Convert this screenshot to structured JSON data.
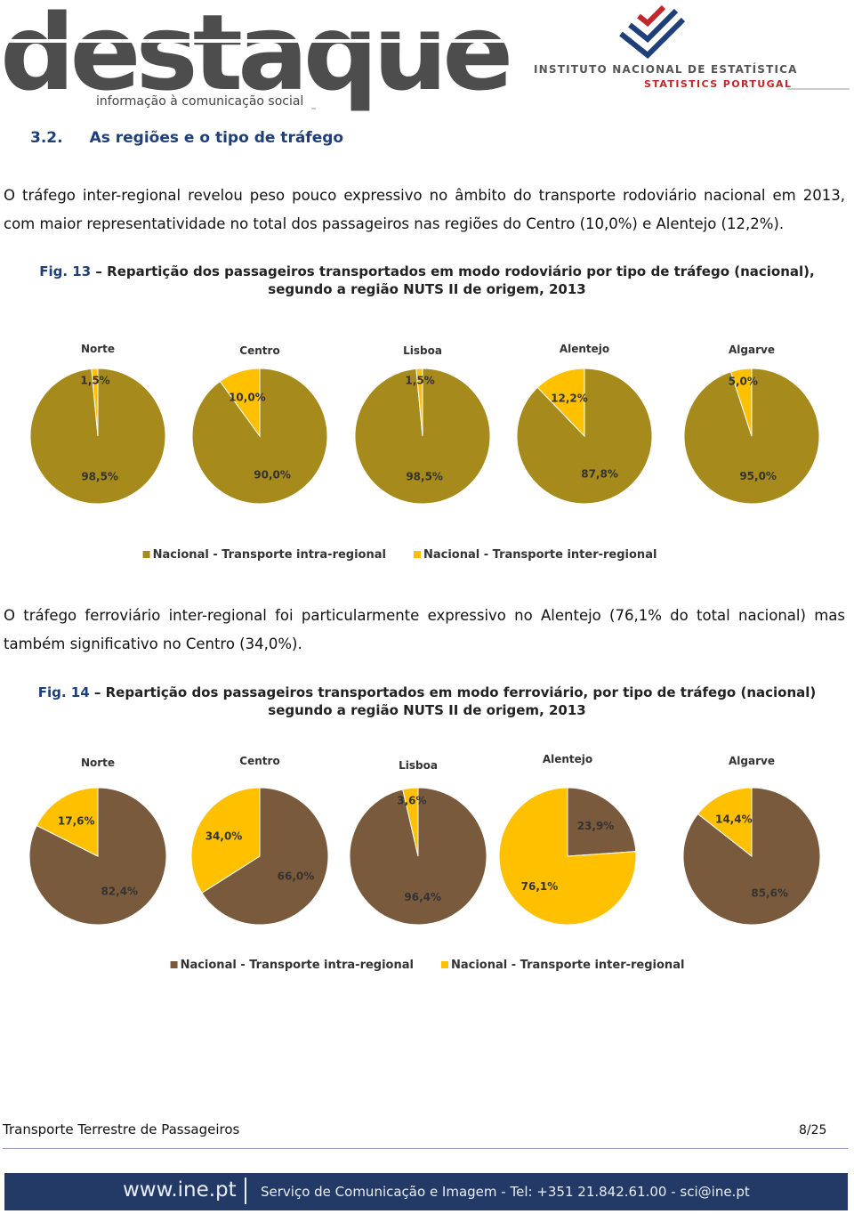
{
  "header": {
    "brand": "destaque",
    "tagline": "informação à comunicação social",
    "institute": "INSTITUTO NACIONAL DE ESTATÍSTICA",
    "institute_en": "STATISTICS PORTUGAL"
  },
  "section": {
    "number": "3.2.",
    "title": "As regiões e o tipo de tráfego"
  },
  "paragraphs": [
    "O tráfego inter-regional revelou peso pouco expressivo no âmbito do transporte rodoviário nacional em 2013, com maior representatividade no total dos passageiros nas regiões do Centro (10,0%) e Alentejo (12,2%).",
    "O tráfego ferroviário inter-regional foi particularmente expressivo no Alentejo (76,1% do total nacional) mas também significativo no Centro (34,0%)."
  ],
  "figures": [
    {
      "label": "Fig. 13",
      "caption": "– Repartição dos passageiros transportados em modo rodoviário por tipo de tráfego (nacional), segundo a região NUTS II de origem, 2013",
      "chart_data": [
        {
          "type": "pie",
          "title": "Norte",
          "categories": [
            "Nacional - Transporte intra-regional",
            "Nacional - Transporte inter-regional"
          ],
          "colors": [
            "#a68a1c",
            "#ffc000"
          ],
          "values": [
            98.5,
            1.5
          ],
          "value_labels": [
            "98,5%",
            "1,5%"
          ]
        },
        {
          "type": "pie",
          "title": "Centro",
          "categories": [
            "Nacional - Transporte intra-regional",
            "Nacional - Transporte inter-regional"
          ],
          "colors": [
            "#a68a1c",
            "#ffc000"
          ],
          "values": [
            90.0,
            10.0
          ],
          "value_labels": [
            "90,0%",
            "10,0%"
          ]
        },
        {
          "type": "pie",
          "title": "Lisboa",
          "categories": [
            "Nacional - Transporte intra-regional",
            "Nacional - Transporte inter-regional"
          ],
          "colors": [
            "#a68a1c",
            "#ffc000"
          ],
          "values": [
            98.5,
            1.5
          ],
          "value_labels": [
            "98,5%",
            "1,5%"
          ]
        },
        {
          "type": "pie",
          "title": "Alentejo",
          "categories": [
            "Nacional - Transporte intra-regional",
            "Nacional - Transporte inter-regional"
          ],
          "colors": [
            "#a68a1c",
            "#ffc000"
          ],
          "values": [
            87.8,
            12.2
          ],
          "value_labels": [
            "87,8%",
            "12,2%"
          ]
        },
        {
          "type": "pie",
          "title": "Algarve",
          "categories": [
            "Nacional - Transporte intra-regional",
            "Nacional - Transporte inter-regional"
          ],
          "colors": [
            "#a68a1c",
            "#ffc000"
          ],
          "values": [
            95.0,
            5.0
          ],
          "value_labels": [
            "95,0%",
            "5,0%"
          ]
        }
      ]
    },
    {
      "label": "Fig. 14",
      "caption": "– Repartição dos passageiros transportados em modo ferroviário, por tipo de tráfego (nacional) segundo a região NUTS II de origem, 2013",
      "chart_data": [
        {
          "type": "pie",
          "title": "Norte",
          "categories": [
            "Nacional - Transporte intra-regional",
            "Nacional - Transporte inter-regional"
          ],
          "colors": [
            "#7a5a3c",
            "#ffc000"
          ],
          "values": [
            82.4,
            17.6
          ],
          "value_labels": [
            "82,4%",
            "17,6%"
          ]
        },
        {
          "type": "pie",
          "title": "Centro",
          "categories": [
            "Nacional - Transporte intra-regional",
            "Nacional - Transporte inter-regional"
          ],
          "colors": [
            "#7a5a3c",
            "#ffc000"
          ],
          "values": [
            66.0,
            34.0
          ],
          "value_labels": [
            "66,0%",
            "34,0%"
          ]
        },
        {
          "type": "pie",
          "title": "Lisboa",
          "categories": [
            "Nacional - Transporte intra-regional",
            "Nacional - Transporte inter-regional"
          ],
          "colors": [
            "#7a5a3c",
            "#ffc000"
          ],
          "values": [
            96.4,
            3.6
          ],
          "value_labels": [
            "96,4%",
            "3,6%"
          ]
        },
        {
          "type": "pie",
          "title": "Alentejo",
          "categories": [
            "Nacional - Transporte intra-regional",
            "Nacional - Transporte inter-regional"
          ],
          "colors": [
            "#7a5a3c",
            "#ffc000"
          ],
          "values": [
            23.9,
            76.1
          ],
          "value_labels": [
            "23,9%",
            "76,1%"
          ]
        },
        {
          "type": "pie",
          "title": "Algarve",
          "categories": [
            "Nacional - Transporte intra-regional",
            "Nacional - Transporte inter-regional"
          ],
          "colors": [
            "#7a5a3c",
            "#ffc000"
          ],
          "values": [
            85.6,
            14.4
          ],
          "value_labels": [
            "85,6%",
            "14,4%"
          ]
        }
      ]
    }
  ],
  "footer": {
    "doc_title": "Transporte Terrestre de Passageiros",
    "page": "8/25",
    "site": "www.ine.pt",
    "contact": "Serviço de Comunicação e Imagem - Tel: +351 21.842.61.00 - sci@ine.pt"
  }
}
